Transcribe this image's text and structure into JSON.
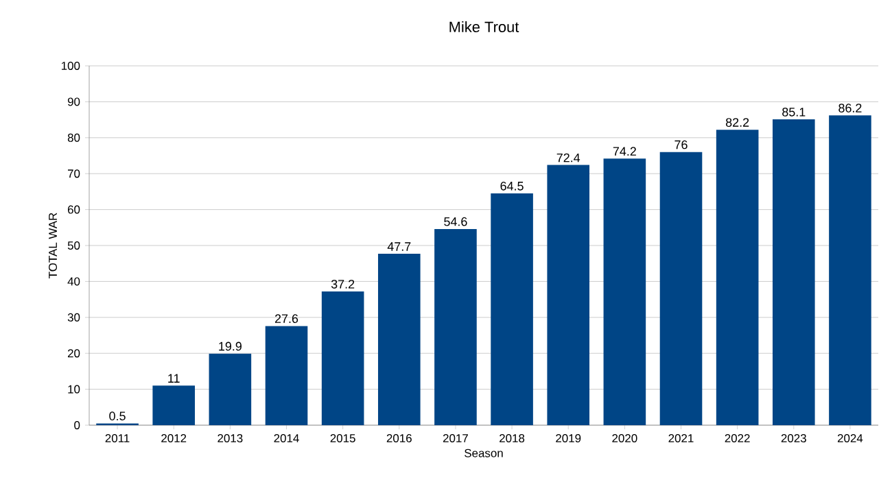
{
  "chart_data": {
    "type": "bar",
    "title": "Mike Trout",
    "xlabel": "Season",
    "ylabel": "TOTAL WAR",
    "categories": [
      "2011",
      "2012",
      "2013",
      "2014",
      "2015",
      "2016",
      "2017",
      "2018",
      "2019",
      "2020",
      "2021",
      "2022",
      "2023",
      "2024"
    ],
    "values": [
      0.5,
      11,
      19.9,
      27.6,
      37.2,
      47.7,
      54.6,
      64.5,
      72.4,
      74.2,
      76,
      82.2,
      85.1,
      86.2
    ],
    "color": "#004586",
    "ylim": [
      0,
      100
    ],
    "yticks": [
      0,
      10,
      20,
      30,
      40,
      50,
      60,
      70,
      80,
      90,
      100
    ],
    "grid": "y",
    "data_labels": true
  }
}
